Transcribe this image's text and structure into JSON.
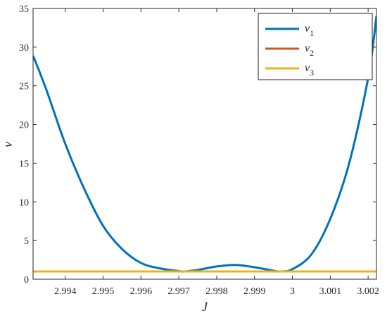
{
  "chart_data": {
    "type": "line",
    "xlabel": "J",
    "ylabel": "ν",
    "xlim": [
      2.99315,
      3.00222
    ],
    "ylim": [
      0,
      35
    ],
    "xticks": [
      2.994,
      2.995,
      2.996,
      2.997,
      2.998,
      2.999,
      3,
      3.001,
      3.002
    ],
    "xtick_labels": [
      "2.994",
      "2.995",
      "2.996",
      "2.997",
      "2.998",
      "2.999",
      "3",
      "3.001",
      "3.002"
    ],
    "yticks": [
      0,
      5,
      10,
      15,
      20,
      25,
      30,
      35
    ],
    "ytick_labels": [
      "0",
      "5",
      "10",
      "15",
      "20",
      "25",
      "30",
      "35"
    ],
    "grid": false,
    "legend_position": "top-right",
    "series": [
      {
        "name": "ν1",
        "base": "ν",
        "sub": "1",
        "color": "#0072BD",
        "x": [
          2.99315,
          2.9935,
          2.994,
          2.9945,
          2.995,
          2.9955,
          2.996,
          2.9965,
          2.997,
          2.99715,
          2.9975,
          2.998,
          2.9985,
          2.999,
          2.9995,
          2.9997,
          3.0,
          3.0005,
          3.001,
          3.0015,
          3.002,
          3.00222
        ],
        "y": [
          28.9,
          24.5,
          17.5,
          11.7,
          6.9,
          3.9,
          2.1,
          1.4,
          1.05,
          1.0,
          1.2,
          1.65,
          1.85,
          1.55,
          1.1,
          1.0,
          1.3,
          3.2,
          7.8,
          15.0,
          26.0,
          34.0
        ]
      },
      {
        "name": "ν2",
        "base": "ν",
        "sub": "2",
        "color": "#D95319",
        "x": [
          2.99315,
          3.00222
        ],
        "y": [
          1,
          1
        ]
      },
      {
        "name": "ν3",
        "base": "ν",
        "sub": "3",
        "color": "#EDB120",
        "x": [
          2.99315,
          3.00222
        ],
        "y": [
          1,
          1
        ]
      }
    ]
  }
}
